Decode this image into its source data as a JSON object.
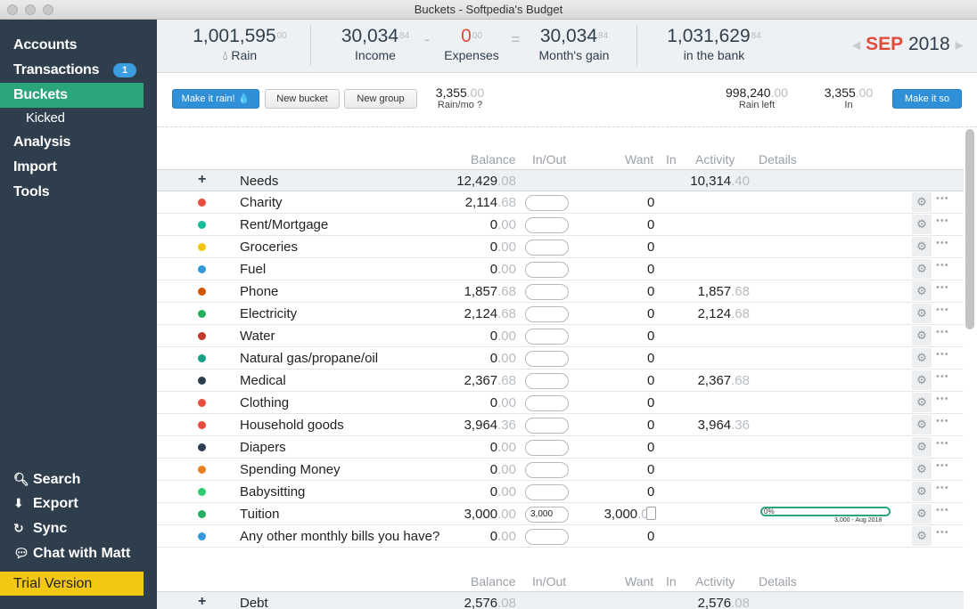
{
  "window": {
    "title": "Buckets - Softpedia's Budget"
  },
  "nav": {
    "accounts": "Accounts",
    "transactions": "Transactions",
    "transactions_badge": "1",
    "buckets": "Buckets",
    "kicked": "Kicked",
    "analysis": "Analysis",
    "import": "Import",
    "tools": "Tools",
    "search": "Search",
    "export": "Export",
    "sync": "Sync",
    "chat": "Chat with Matt",
    "trial": "Trial Version"
  },
  "summary": {
    "rain": {
      "whole": "1,001,595",
      "cents": "00",
      "label": "Rain"
    },
    "income": {
      "whole": "30,034",
      "cents": "84",
      "label": "Income"
    },
    "expenses": {
      "whole": "0",
      "cents": "00",
      "label": "Expenses"
    },
    "gain": {
      "whole": "30,034",
      "cents": "84",
      "label": "Month's gain"
    },
    "bank": {
      "whole": "1,031,629",
      "cents": "84",
      "label": "in the bank"
    },
    "minus": "-",
    "equals": "=",
    "month": "SEP",
    "year": "2018",
    "prev": "◀",
    "next": "▶"
  },
  "toolbar": {
    "make_rain": "Make it rain! 💧",
    "new_bucket": "New bucket",
    "new_group": "New group",
    "rain_mo": {
      "whole": "3,355",
      "cents": ".00",
      "label": "Rain/mo"
    },
    "rain_left": {
      "whole": "998,240",
      "cents": ".00",
      "label": "Rain left"
    },
    "in": {
      "whole": "3,355",
      "cents": ".00",
      "label": "In"
    },
    "make_so": "Make it so"
  },
  "columns": {
    "balance": "Balance",
    "inout": "In/Out",
    "want": "Want",
    "in": "In",
    "activity": "Activity",
    "details": "Details"
  },
  "groups": [
    {
      "name": "Needs",
      "balance": "12,429",
      "bcents": ".08",
      "activity": "10,314",
      "acents": ".40"
    },
    {
      "name": "Debt",
      "balance": "2,576",
      "bcents": ".08",
      "activity": "2,576",
      "acents": ".08"
    }
  ],
  "buckets": [
    {
      "name": "Charity",
      "color": "#e74c3c",
      "balance": "2,114",
      "bcents": ".68",
      "want": "0",
      "activity": "",
      "acents": ""
    },
    {
      "name": "Rent/Mortgage",
      "color": "#1abc9c",
      "balance": "0",
      "bcents": ".00",
      "want": "0",
      "activity": "",
      "acents": ""
    },
    {
      "name": "Groceries",
      "color": "#f1c40f",
      "balance": "0",
      "bcents": ".00",
      "want": "0",
      "activity": "",
      "acents": ""
    },
    {
      "name": "Fuel",
      "color": "#3498db",
      "balance": "0",
      "bcents": ".00",
      "want": "0",
      "activity": "",
      "acents": ""
    },
    {
      "name": "Phone",
      "color": "#d35400",
      "balance": "1,857",
      "bcents": ".68",
      "want": "0",
      "activity": "1,857",
      "acents": ".68"
    },
    {
      "name": "Electricity",
      "color": "#27ae60",
      "balance": "2,124",
      "bcents": ".68",
      "want": "0",
      "activity": "2,124",
      "acents": ".68"
    },
    {
      "name": "Water",
      "color": "#c0392b",
      "balance": "0",
      "bcents": ".00",
      "want": "0",
      "activity": "",
      "acents": ""
    },
    {
      "name": "Natural gas/propane/oil",
      "color": "#16a085",
      "balance": "0",
      "bcents": ".00",
      "want": "0",
      "activity": "",
      "acents": ""
    },
    {
      "name": "Medical",
      "color": "#2c3e50",
      "balance": "2,367",
      "bcents": ".68",
      "want": "0",
      "activity": "2,367",
      "acents": ".68"
    },
    {
      "name": "Clothing",
      "color": "#e74c3c",
      "balance": "0",
      "bcents": ".00",
      "want": "0",
      "activity": "",
      "acents": ""
    },
    {
      "name": "Household goods",
      "color": "#e74c3c",
      "balance": "3,964",
      "bcents": ".36",
      "want": "0",
      "activity": "3,964",
      "acents": ".36"
    },
    {
      "name": "Diapers",
      "color": "#2c3e50",
      "balance": "0",
      "bcents": ".00",
      "want": "0",
      "activity": "",
      "acents": ""
    },
    {
      "name": "Spending Money",
      "color": "#e67e22",
      "balance": "0",
      "bcents": ".00",
      "want": "0",
      "activity": "",
      "acents": ""
    },
    {
      "name": "Babysitting",
      "color": "#2ecc71",
      "balance": "0",
      "bcents": ".00",
      "want": "0",
      "activity": "",
      "acents": ""
    },
    {
      "name": "Tuition",
      "color": "#27ae60",
      "balance": "3,000",
      "bcents": ".00",
      "want": "3,000",
      "wcents": ".00",
      "activity": "",
      "acents": "",
      "inout": "3,000",
      "progress_label": "0%",
      "progress_detail": "3,000 - Aug 2018",
      "progress": 0
    },
    {
      "name": "Any other monthly bills you have?",
      "color": "#3498db",
      "balance": "0",
      "bcents": ".00",
      "want": "0",
      "activity": "",
      "acents": ""
    }
  ],
  "icons": {
    "gear": "gear-icon",
    "more": "more-icon",
    "search": "search-icon",
    "export": "export-icon",
    "sync": "sync-icon",
    "chat": "chat-icon"
  }
}
